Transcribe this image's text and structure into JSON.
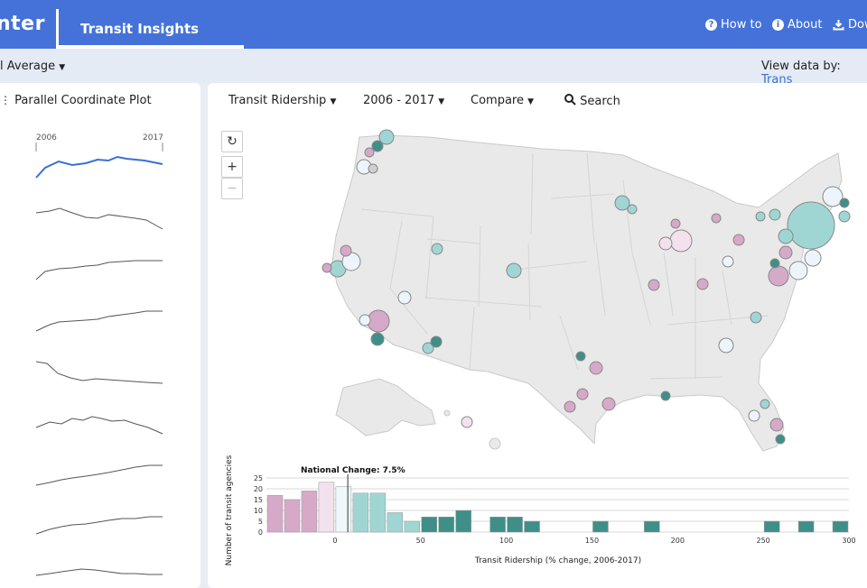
{
  "header": {
    "brand": "nter",
    "app_title": "Transit Insights",
    "nav": [
      {
        "label": "How to",
        "icon": "question-circle-icon"
      },
      {
        "label": "About",
        "icon": "info-circle-icon"
      },
      {
        "label": "Dow",
        "icon": "download-icon"
      }
    ]
  },
  "subbar": {
    "average_label": "l Average",
    "view_by_label": "View data by:",
    "view_by_value": "Trans"
  },
  "left_panel": {
    "title": "Parallel Coordinate Plot",
    "year_start": "2006",
    "year_end": "2017",
    "highlight_color": "#3a6fd6",
    "line_color": "#555555"
  },
  "toolbar": {
    "metric": "Transit Ridership",
    "years": "2006 - 2017",
    "compare": "Compare",
    "search": "Search"
  },
  "map_controls": {
    "reset": "↻",
    "zoom_in": "+",
    "zoom_out": "−"
  },
  "colors": {
    "brand": "#4472d9",
    "teal_dark": "#3f8f89",
    "teal_light": "#9fd6d4",
    "pink": "#d6a9c8",
    "pink_light": "#f4e1ee",
    "land": "#e9e9e9"
  },
  "chart_data": {
    "type": "bar",
    "title": "National Change: 7.5%",
    "xlabel": "Transit Ridership (% change, 2006-2017)",
    "ylabel": "Number of transit agencies",
    "xlim": [
      -40,
      300
    ],
    "ylim": [
      0,
      25
    ],
    "xticks": [
      0,
      50,
      100,
      150,
      200,
      250,
      300
    ],
    "yticks": [
      0,
      5,
      10,
      15,
      20,
      25
    ],
    "national_change": 7.5,
    "bin_width": 10,
    "bins": [
      {
        "x0": -40,
        "count": 17,
        "color": "#d6a9c8"
      },
      {
        "x0": -30,
        "count": 15,
        "color": "#d6a9c8"
      },
      {
        "x0": -20,
        "count": 19,
        "color": "#d6a9c8"
      },
      {
        "x0": -10,
        "count": 23,
        "color": "#f4e1ee"
      },
      {
        "x0": 0,
        "count": 21,
        "color": "#eef8f8"
      },
      {
        "x0": 10,
        "count": 18,
        "color": "#9fd6d4"
      },
      {
        "x0": 20,
        "count": 18,
        "color": "#9fd6d4"
      },
      {
        "x0": 30,
        "count": 9,
        "color": "#9fd6d4"
      },
      {
        "x0": 40,
        "count": 5,
        "color": "#9fd6d4"
      },
      {
        "x0": 50,
        "count": 7,
        "color": "#3f8f89"
      },
      {
        "x0": 60,
        "count": 7,
        "color": "#3f8f89"
      },
      {
        "x0": 70,
        "count": 10,
        "color": "#3f8f89"
      },
      {
        "x0": 90,
        "count": 7,
        "color": "#3f8f89"
      },
      {
        "x0": 100,
        "count": 7,
        "color": "#3f8f89"
      },
      {
        "x0": 110,
        "count": 5,
        "color": "#3f8f89"
      },
      {
        "x0": 150,
        "count": 5,
        "color": "#3f8f89"
      },
      {
        "x0": 180,
        "count": 5,
        "color": "#3f8f89"
      },
      {
        "x0": 250,
        "count": 5,
        "color": "#3f8f89"
      },
      {
        "x0": 270,
        "count": 5,
        "color": "#3f8f89"
      },
      {
        "x0": 290,
        "count": 5,
        "color": "#3f8f89"
      }
    ]
  }
}
